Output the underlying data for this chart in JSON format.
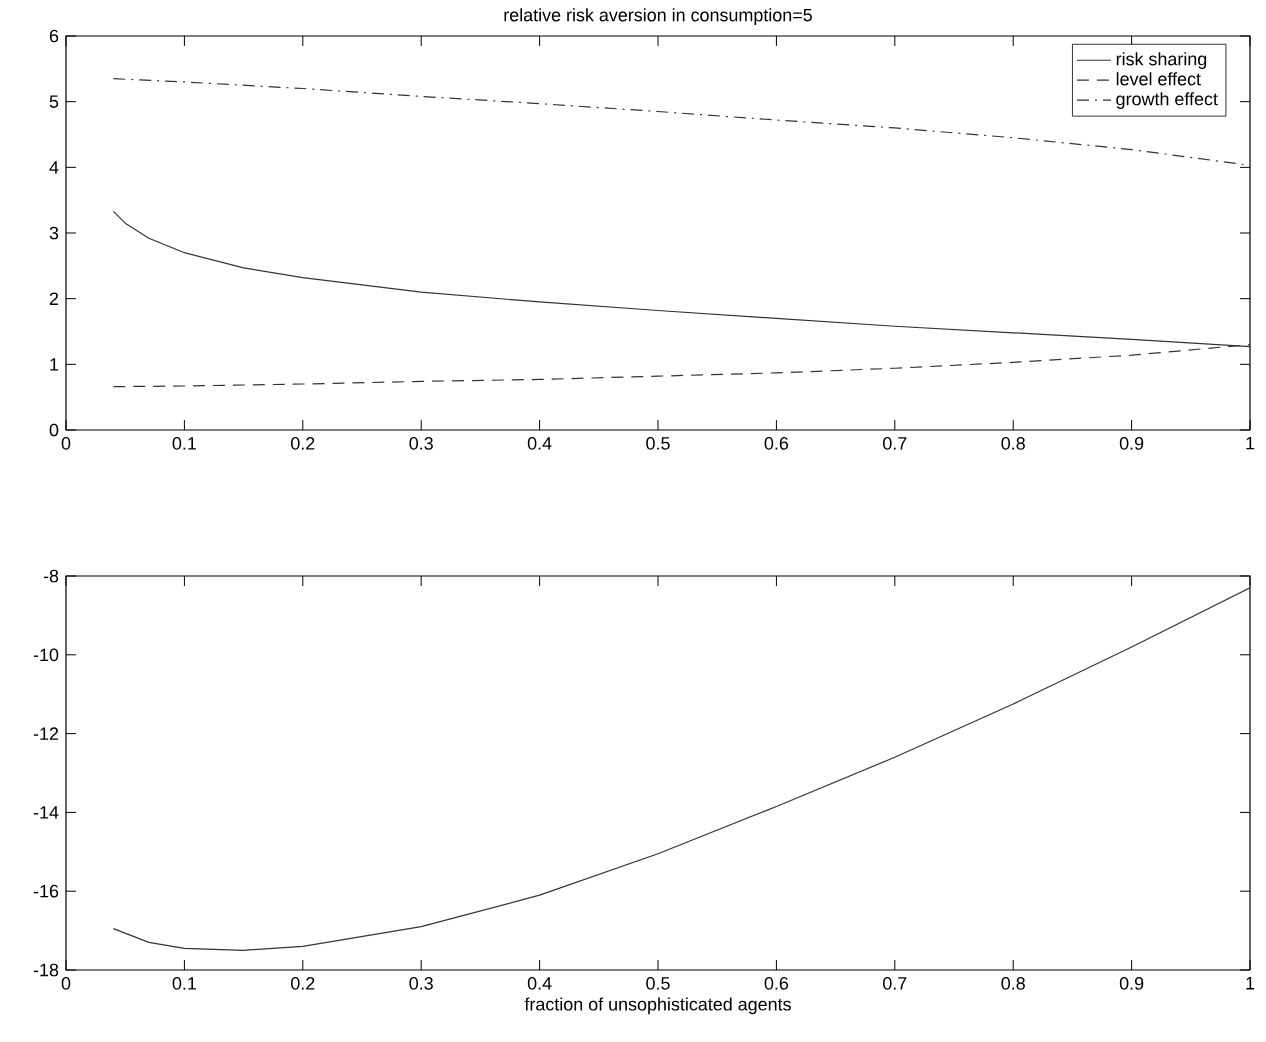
{
  "chart_data": [
    {
      "type": "line",
      "title": "relative risk aversion in consumption=5",
      "legend": "top right",
      "grid": false,
      "marker": "none",
      "xlim": [
        0,
        1
      ],
      "xticks": [
        0,
        0.1,
        0.2,
        0.3,
        0.4,
        0.5,
        0.6,
        0.7,
        0.8,
        0.9,
        1
      ],
      "ylim": [
        0,
        6
      ],
      "yticks": [
        0,
        1,
        2,
        3,
        4,
        5,
        6
      ],
      "series": [
        {
          "name": "risk sharing",
          "color": "#333333",
          "line_style": "solid",
          "x": [
            0.04,
            0.05,
            0.07,
            0.1,
            0.15,
            0.2,
            0.3,
            0.4,
            0.5,
            0.6,
            0.7,
            0.8,
            0.9,
            1.0
          ],
          "values": [
            3.33,
            3.15,
            2.92,
            2.7,
            2.47,
            2.32,
            2.1,
            1.95,
            1.82,
            1.7,
            1.58,
            1.48,
            1.38,
            1.27
          ]
        },
        {
          "name": "level effect",
          "color": "#333333",
          "line_style": "dashed",
          "x": [
            0.04,
            0.1,
            0.2,
            0.3,
            0.4,
            0.5,
            0.6,
            0.7,
            0.8,
            0.9,
            1.0
          ],
          "values": [
            0.66,
            0.67,
            0.7,
            0.74,
            0.77,
            0.82,
            0.87,
            0.94,
            1.03,
            1.14,
            1.3
          ]
        },
        {
          "name": "growth effect",
          "color": "#333333",
          "line_style": "dashdot",
          "x": [
            0.04,
            0.1,
            0.2,
            0.3,
            0.4,
            0.5,
            0.6,
            0.7,
            0.8,
            0.9,
            1.0
          ],
          "values": [
            5.35,
            5.3,
            5.2,
            5.08,
            4.97,
            4.85,
            4.72,
            4.6,
            4.45,
            4.27,
            4.03
          ]
        }
      ]
    },
    {
      "type": "line",
      "xlabel": "fraction of unsophisticated agents",
      "grid": false,
      "marker": "none",
      "xlim": [
        0,
        1
      ],
      "xticks": [
        0,
        0.1,
        0.2,
        0.3,
        0.4,
        0.5,
        0.6,
        0.7,
        0.8,
        0.9,
        1
      ],
      "ylim": [
        -18,
        -8
      ],
      "yticks": [
        -18,
        -16,
        -14,
        -12,
        -10,
        -8
      ],
      "series": [
        {
          "color": "#333333",
          "line_style": "solid",
          "x": [
            0.04,
            0.07,
            0.1,
            0.15,
            0.2,
            0.3,
            0.4,
            0.5,
            0.6,
            0.7,
            0.8,
            0.9,
            1.0
          ],
          "values": [
            -16.95,
            -17.3,
            -17.45,
            -17.5,
            -17.4,
            -16.9,
            -16.1,
            -15.05,
            -13.85,
            -12.6,
            -11.25,
            -9.8,
            -8.3
          ]
        }
      ]
    }
  ]
}
